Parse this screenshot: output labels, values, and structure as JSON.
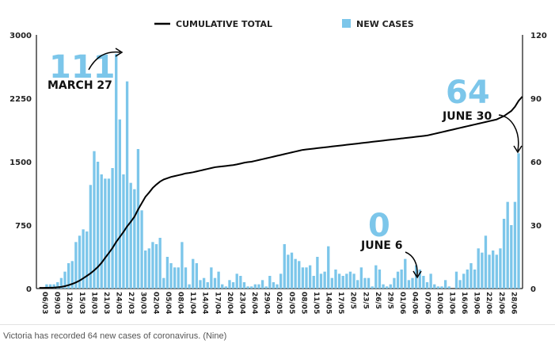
{
  "caption": "Victoria has recorded 64 new cases of coronavirus. (Nine)",
  "colors": {
    "bar": "#7cc6ea",
    "line": "#000000",
    "accent": "#7cc6ea"
  },
  "chart_data": {
    "type": "bar",
    "legend": {
      "placement": "top-center",
      "line_label": "CUMULATIVE TOTAL",
      "bar_label": "NEW CASES"
    },
    "grid": false,
    "y_left": {
      "range": [
        0,
        3000
      ],
      "ticks": [
        0,
        750,
        1500,
        2250,
        3000
      ],
      "tick_labels": [
        "0",
        "750",
        "1500",
        "2250",
        "3000"
      ],
      "series": "CUMULATIVE TOTAL"
    },
    "y_right": {
      "range": [
        0,
        120
      ],
      "ticks": [
        0,
        30,
        60,
        90,
        120
      ],
      "tick_labels": [
        "0",
        "30",
        "60",
        "90",
        "120"
      ],
      "series": "NEW CASES"
    },
    "x_tick_labels": [
      "06/03",
      "09/03",
      "12/03",
      "15/03",
      "18/03",
      "21/03",
      "24/03",
      "27/03",
      "30/03",
      "02/04",
      "05/04",
      "08/04",
      "11/04",
      "14/04",
      "17/04",
      "20/04",
      "23/04",
      "26/04",
      "29/04",
      "02/05",
      "05/05",
      "08/05",
      "11/05",
      "14/05",
      "17/05",
      "20/5",
      "23/5",
      "26/5",
      "29/5",
      "01/06",
      "04/06",
      "07/06",
      "10/06",
      "13/06",
      "16/06",
      "19/06",
      "22/06",
      "25/06",
      "28/06"
    ],
    "series": [
      {
        "name": "NEW CASES",
        "axis": "right",
        "values": [
          0,
          0,
          2,
          2,
          2,
          3,
          5,
          8,
          12,
          13,
          22,
          25,
          28,
          27,
          49,
          65,
          60,
          54,
          52,
          52,
          57,
          111,
          80,
          54,
          98,
          50,
          47,
          66,
          37,
          18,
          19,
          22,
          21,
          24,
          5,
          15,
          12,
          10,
          10,
          22,
          10,
          2,
          14,
          12,
          4,
          5,
          3,
          10,
          5,
          8,
          2,
          1,
          4,
          3,
          7,
          6,
          3,
          1,
          1,
          2,
          2,
          4,
          1,
          6,
          3,
          2,
          7,
          21,
          16,
          17,
          14,
          13,
          10,
          10,
          11,
          6,
          15,
          7,
          8,
          20,
          5,
          9,
          7,
          6,
          7,
          8,
          7,
          4,
          10,
          5,
          5,
          1,
          11,
          9,
          2,
          1,
          2,
          5,
          8,
          9,
          14,
          4,
          5,
          11,
          9,
          6,
          3,
          7,
          2,
          1,
          1,
          4,
          1,
          0,
          8,
          4,
          7,
          9,
          12,
          9,
          19,
          17,
          25,
          16,
          18,
          16,
          19,
          33,
          41,
          30,
          41,
          64
        ]
      },
      {
        "name": "CUMULATIVE TOTAL",
        "axis": "left",
        "values": [
          8,
          8,
          9,
          10,
          12,
          15,
          20,
          28,
          40,
          55,
          72,
          94,
          121,
          150,
          180,
          216,
          255,
          304,
          363,
          420,
          480,
          550,
          610,
          670,
          735,
          790,
          850,
          935,
          1010,
          1085,
          1135,
          1190,
          1230,
          1265,
          1290,
          1305,
          1320,
          1330,
          1340,
          1350,
          1362,
          1368,
          1375,
          1385,
          1395,
          1405,
          1415,
          1425,
          1435,
          1440,
          1445,
          1450,
          1455,
          1460,
          1468,
          1478,
          1488,
          1495,
          1500,
          1510,
          1520,
          1530,
          1540,
          1550,
          1560,
          1570,
          1580,
          1590,
          1600,
          1610,
          1620,
          1630,
          1640,
          1645,
          1650,
          1655,
          1660,
          1665,
          1670,
          1675,
          1680,
          1685,
          1690,
          1695,
          1700,
          1705,
          1710,
          1715,
          1720,
          1725,
          1730,
          1735,
          1740,
          1745,
          1750,
          1755,
          1760,
          1765,
          1770,
          1775,
          1780,
          1785,
          1790,
          1795,
          1800,
          1805,
          1810,
          1820,
          1830,
          1840,
          1850,
          1860,
          1870,
          1880,
          1890,
          1900,
          1910,
          1920,
          1930,
          1940,
          1950,
          1960,
          1970,
          1980,
          1990,
          2000,
          2020,
          2040,
          2070,
          2100,
          2150,
          2220,
          2270
        ]
      }
    ],
    "annotations": [
      {
        "id": "mar27",
        "number": "111",
        "label": "MARCH 27"
      },
      {
        "id": "june30",
        "number": "64",
        "label": "JUNE 30"
      },
      {
        "id": "june6",
        "number": "0",
        "label": "JUNE 6"
      }
    ]
  }
}
